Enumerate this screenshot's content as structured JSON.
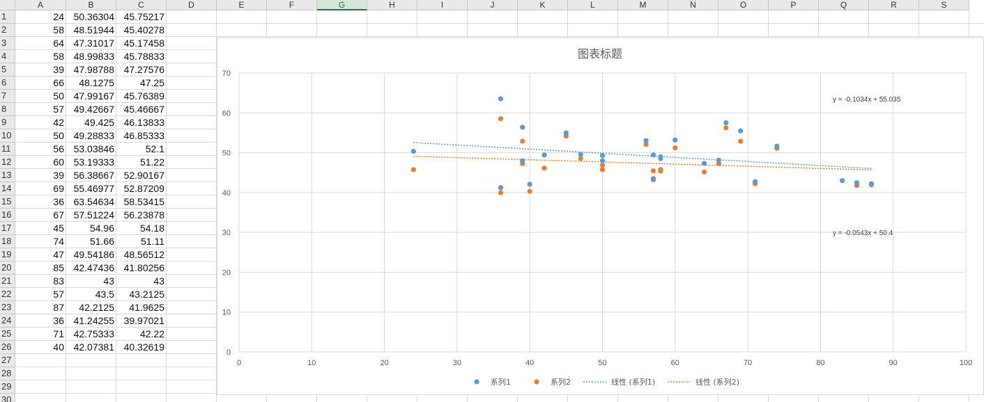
{
  "columns": [
    "A",
    "B",
    "C",
    "D",
    "E",
    "F",
    "G",
    "H",
    "I",
    "J",
    "K",
    "L",
    "M",
    "N",
    "O",
    "P",
    "Q",
    "R",
    "S"
  ],
  "selected_column": "G",
  "rows": [
    [
      "24",
      "50.36304",
      "45.75217"
    ],
    [
      "58",
      "48.51944",
      "45.40278"
    ],
    [
      "64",
      "47.31017",
      "45.17458"
    ],
    [
      "58",
      "48.99833",
      "45.78833"
    ],
    [
      "39",
      "47.98788",
      "47.27576"
    ],
    [
      "66",
      "48.1275",
      "47.25"
    ],
    [
      "50",
      "47.99167",
      "45.76389"
    ],
    [
      "57",
      "49.42667",
      "45.46667"
    ],
    [
      "42",
      "49.425",
      "46.13833"
    ],
    [
      "50",
      "49.28833",
      "46.85333"
    ],
    [
      "56",
      "53.03846",
      "52.1"
    ],
    [
      "60",
      "53.19333",
      "51.22"
    ],
    [
      "39",
      "56.38667",
      "52.90167"
    ],
    [
      "69",
      "55.46977",
      "52.87209"
    ],
    [
      "36",
      "63.54634",
      "58.53415"
    ],
    [
      "67",
      "57.51224",
      "56.23878"
    ],
    [
      "45",
      "54.96",
      "54.18"
    ],
    [
      "74",
      "51.66",
      "51.11"
    ],
    [
      "47",
      "49.54186",
      "48.56512"
    ],
    [
      "85",
      "42.47436",
      "41.80256"
    ],
    [
      "83",
      "43",
      "43"
    ],
    [
      "57",
      "43.5",
      "43.2125"
    ],
    [
      "87",
      "42.2125",
      "41.9625"
    ],
    [
      "36",
      "41.24255",
      "39.97021"
    ],
    [
      "71",
      "42.75333",
      "42.22"
    ],
    [
      "40",
      "42.07381",
      "40.32619"
    ]
  ],
  "row_numbers": [
    "1",
    "2",
    "3",
    "4",
    "5",
    "6",
    "7",
    "8",
    "9",
    "10",
    "11",
    "12",
    "13",
    "14",
    "15",
    "16",
    "17",
    "18",
    "19",
    "20",
    "21",
    "22",
    "23",
    "24",
    "25",
    "26",
    "27",
    "28",
    "29",
    "30"
  ],
  "chart_data": {
    "type": "scatter",
    "title": "图表标题",
    "xlim": [
      0,
      100
    ],
    "ylim": [
      0,
      70
    ],
    "x_ticks": [
      "0",
      "10",
      "20",
      "30",
      "40",
      "50",
      "60",
      "70",
      "80",
      "90",
      "100"
    ],
    "y_ticks": [
      "0",
      "10",
      "20",
      "30",
      "40",
      "50",
      "60",
      "70"
    ],
    "grid": true,
    "legend_position": "bottom",
    "x": [
      24,
      58,
      64,
      58,
      39,
      66,
      50,
      57,
      42,
      50,
      56,
      60,
      39,
      69,
      36,
      67,
      45,
      74,
      47,
      85,
      83,
      57,
      87,
      36,
      71,
      40
    ],
    "series": [
      {
        "name": "系列1",
        "color": "#5b9bd5",
        "values": [
          50.36304,
          48.51944,
          47.31017,
          48.99833,
          47.98788,
          48.1275,
          47.99167,
          49.42667,
          49.425,
          49.28833,
          53.03846,
          53.19333,
          56.38667,
          55.46977,
          63.54634,
          57.51224,
          54.96,
          51.66,
          49.54186,
          42.47436,
          43,
          43.5,
          42.2125,
          41.24255,
          42.75333,
          42.07381
        ]
      },
      {
        "name": "系列2",
        "color": "#ed7d31",
        "values": [
          45.75217,
          45.40278,
          45.17458,
          45.78833,
          47.27576,
          47.25,
          45.76389,
          45.46667,
          46.13833,
          46.85333,
          52.1,
          51.22,
          52.90167,
          52.87209,
          58.53415,
          56.23878,
          54.18,
          51.11,
          48.56512,
          41.80256,
          43,
          43.2125,
          41.9625,
          39.97021,
          42.22,
          40.32619
        ]
      }
    ],
    "trendlines": [
      {
        "name": "线性 (系列1)",
        "color": "#5b9bd5",
        "slope": -0.1034,
        "intercept": 55.035,
        "equation": "y = -0.1034x + 55.035"
      },
      {
        "name": "线性 (系列2)",
        "color": "#ed7d31",
        "slope": -0.0543,
        "intercept": 50.4,
        "equation": "y = -0.0543x + 50.4"
      }
    ]
  }
}
